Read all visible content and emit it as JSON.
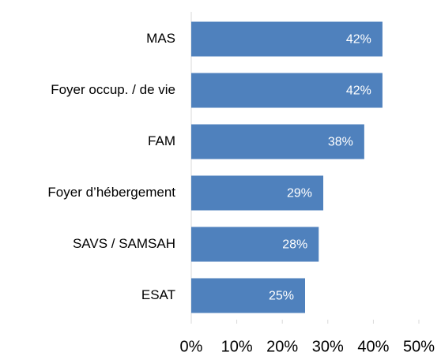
{
  "chart_data": {
    "type": "barh",
    "categories": [
      "MAS",
      "Foyer occup. / de vie",
      "FAM",
      "Foyer d’hébergement",
      "SAVS / SAMSAH",
      "ESAT"
    ],
    "values": [
      42,
      42,
      38,
      29,
      28,
      25
    ],
    "value_labels": [
      "42%",
      "42%",
      "38%",
      "29%",
      "28%",
      "25%"
    ],
    "color": "#4f81bd",
    "xlim": [
      0,
      50
    ],
    "xticks": [
      {
        "value": 0,
        "label": "0%"
      },
      {
        "value": 10,
        "label": "10%"
      },
      {
        "value": 20,
        "label": "20%"
      },
      {
        "value": 30,
        "label": "30%"
      },
      {
        "value": 40,
        "label": "40%"
      },
      {
        "value": 50,
        "label": "50%"
      }
    ]
  }
}
